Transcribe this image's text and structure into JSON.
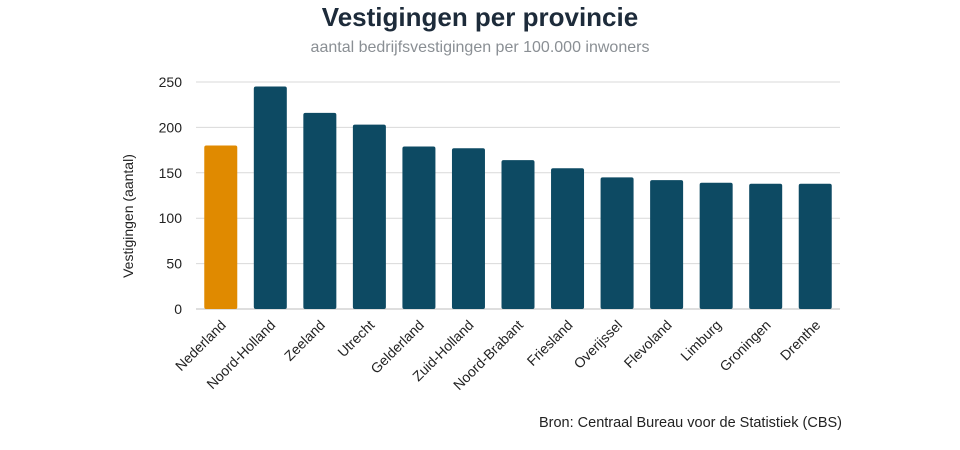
{
  "chart_data": {
    "type": "bar",
    "title": "Vestigingen per provincie",
    "subtitle": "aantal bedrijfsvestigingen per 100.000 inwoners",
    "ylabel": "Vestigingen (aantal)",
    "xlabel": "",
    "ylim": [
      0,
      250
    ],
    "yticks": [
      "0",
      "50",
      "100",
      "150",
      "200",
      "250"
    ],
    "grid": true,
    "categories": [
      "Nederland",
      "Noord-Holland",
      "Zeeland",
      "Utrecht",
      "Gelderland",
      "Zuid-Holland",
      "Noord-Brabant",
      "Friesland",
      "Overijssel",
      "Flevoland",
      "Limburg",
      "Groningen",
      "Drenthe"
    ],
    "values": [
      180,
      245,
      216,
      203,
      179,
      177,
      164,
      155,
      145,
      142,
      139,
      138,
      138
    ],
    "colors": {
      "highlight": "#e08a00",
      "default": "#0d4a63",
      "grid": "#d9d9d9"
    },
    "highlight_index": 0,
    "source": "Bron: Centraal Bureau voor de Statistiek (CBS)"
  }
}
